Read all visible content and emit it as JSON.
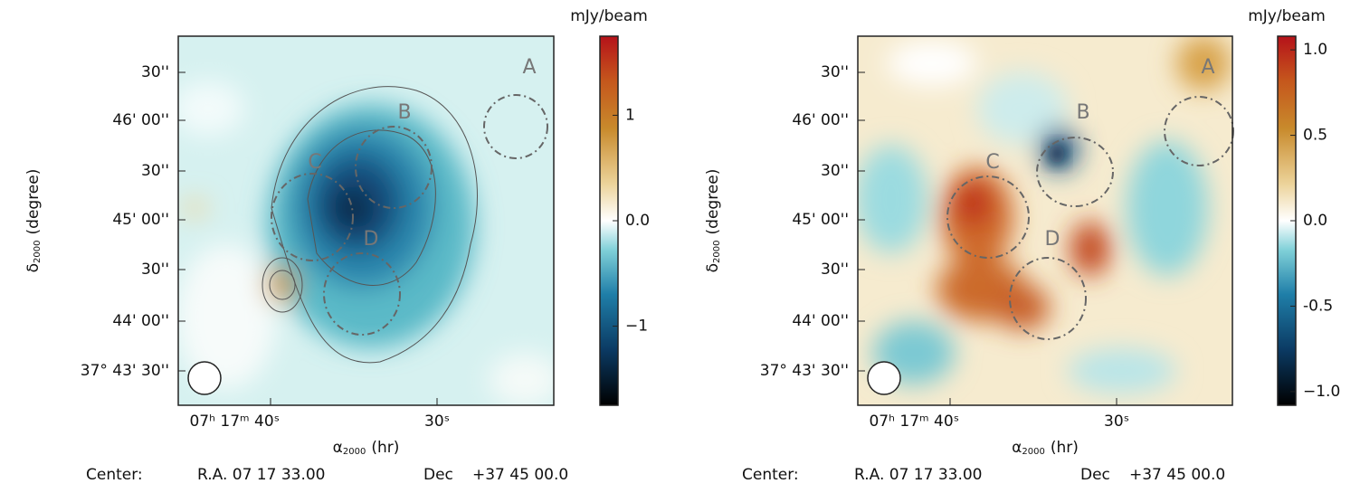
{
  "chart_data": [
    {
      "type": "heatmap",
      "colorbar_label": "mJy/beam",
      "zlim": [
        -1.75,
        1.75
      ],
      "zticks": [
        1,
        {
          "value": 0,
          "label": "0.0"
        },
        {
          "value": -1,
          "label": "−1"
        }
      ],
      "xtick_labels": [
        "07ʰ 17ᵐ 40ˢ",
        "30ˢ"
      ],
      "ytick_labels": [
        "37° 43' 30''",
        "44' 00''",
        "30''",
        "45' 00''",
        "30''",
        "46' 00''",
        "30''"
      ],
      "xlabel": {
        "symbol": "α",
        "subscript": "2000",
        "unit": "(hr)"
      },
      "ylabel": {
        "symbol": "δ",
        "subscript": "2000",
        "unit": "(degree)"
      },
      "regions": [
        "A",
        "B",
        "C",
        "D"
      ],
      "footer": [
        "Center:",
        "R.A. 07 17 33.00",
        "Dec",
        "+37 45 00.0"
      ]
    },
    {
      "type": "heatmap",
      "colorbar_label": "mJy/beam",
      "zlim": [
        -1.08,
        1.08
      ],
      "zticks": [
        {
          "value": 1,
          "label": "1.0"
        },
        0.5,
        {
          "value": 0,
          "label": "0.0"
        },
        -0.5,
        {
          "value": -1,
          "label": "−1.0"
        }
      ],
      "xtick_labels": [
        "07ʰ 17ᵐ 40ˢ",
        "30ˢ"
      ],
      "ytick_labels": [
        "37° 43' 30''",
        "44' 00''",
        "30''",
        "45' 00''",
        "30''",
        "46' 00''",
        "30''"
      ],
      "xlabel": {
        "symbol": "α",
        "subscript": "2000",
        "unit": "(hr)"
      },
      "ylabel": {
        "symbol": "δ",
        "subscript": "2000",
        "unit": "(degree)"
      },
      "regions": [
        "A",
        "B",
        "C",
        "D"
      ],
      "footer": [
        "Center:",
        "R.A. 07 17 33.00",
        "Dec",
        "+37 45 00.0"
      ]
    }
  ]
}
